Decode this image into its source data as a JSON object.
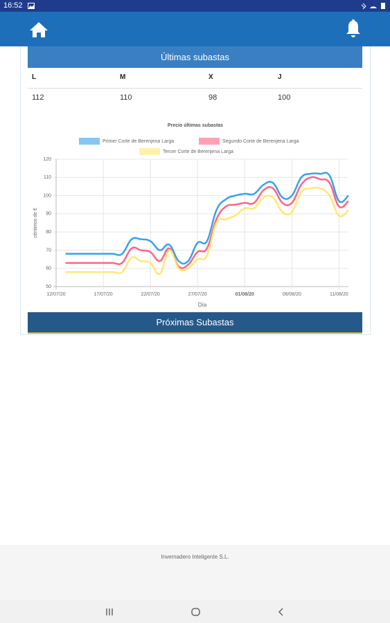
{
  "status_bar": {
    "time": "16:52"
  },
  "card": {
    "header": "Últimas subastas",
    "table": {
      "columns": [
        "L",
        "M",
        "X",
        "J"
      ],
      "rows": [
        [
          112,
          110,
          98,
          100
        ]
      ]
    },
    "next_header": "Próximas Subastas"
  },
  "chart_data": {
    "type": "line",
    "title": "Precio últimas subastas",
    "x_label": "Día",
    "y_label": "céntimos de €",
    "x": [
      "13/07/20",
      "14/07/20",
      "15/07/20",
      "16/07/20",
      "17/07/20",
      "18/07/20",
      "19/07/20",
      "20/07/20",
      "21/07/20",
      "22/07/20",
      "23/07/20",
      "24/07/20",
      "25/07/20",
      "26/07/20",
      "27/07/20",
      "28/07/20",
      "29/07/20",
      "30/07/20",
      "31/07/20",
      "01/08/20",
      "02/08/20",
      "03/08/20",
      "04/08/20",
      "05/08/20",
      "06/08/20",
      "07/08/20",
      "08/08/20",
      "09/08/20",
      "10/08/20",
      "11/08/20",
      "12/08/20"
    ],
    "series": [
      {
        "name": "Primer Corte de Berenjena Larga",
        "color": "#36a2eb",
        "values": [
          68,
          68,
          68,
          68,
          68,
          68,
          68,
          76,
          76,
          75,
          70,
          73,
          64,
          64,
          74,
          75,
          92,
          98,
          100,
          101,
          101,
          106,
          107,
          99,
          100,
          110,
          112,
          112,
          111,
          97,
          100
        ]
      },
      {
        "name": "Segundo Corte de Berenjena Larga",
        "color": "#ff6384",
        "values": [
          63,
          63,
          63,
          63,
          63,
          63,
          63,
          71,
          70,
          69,
          64,
          71,
          61,
          62,
          69,
          71,
          87,
          94,
          95,
          96,
          96,
          103,
          104,
          96,
          96,
          106,
          110,
          109,
          107,
          94,
          97
        ]
      },
      {
        "name": "Tercer Corte de Berenjena Larga",
        "color": "#ffe873",
        "values": [
          58,
          58,
          58,
          58,
          58,
          58,
          58,
          66,
          64,
          63,
          57,
          70,
          60,
          60,
          65,
          67,
          85,
          87,
          89,
          93,
          93,
          99,
          99,
          91,
          91,
          102,
          104,
          104,
          100,
          89,
          92
        ]
      }
    ],
    "xlim": [
      "12/07/20",
      "12/08/20"
    ],
    "xticks": [
      "12/07/20",
      "17/07/20",
      "22/07/20",
      "27/07/20",
      "01/08/20",
      "06/08/20",
      "11/08/20"
    ],
    "ylim": [
      50,
      120
    ],
    "yticks": [
      50,
      60,
      70,
      80,
      90,
      100,
      110,
      120
    ],
    "grid": true
  },
  "footer": "Invernadero Inteligente S.L."
}
